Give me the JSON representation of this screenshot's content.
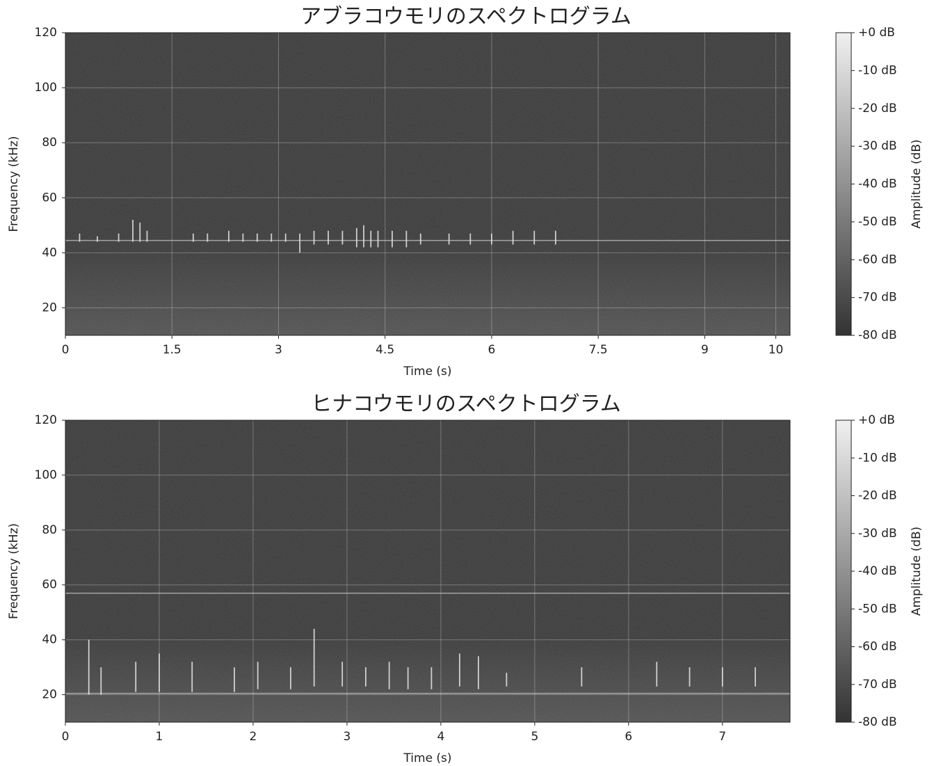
{
  "chart_data": [
    {
      "type": "spectrogram",
      "title": "アブラコウモリのスペクトログラム",
      "x_label": "Time (s)",
      "y_label": "Frequency (kHz)",
      "xlim": [
        0,
        10.2
      ],
      "xticks": [
        0,
        1.5,
        3,
        4.5,
        6,
        7.5,
        9,
        10
      ],
      "ylim": [
        10,
        120
      ],
      "yticks": [
        20,
        40,
        60,
        80,
        100,
        120
      ],
      "grid": true,
      "tone_lines": [
        44.5
      ],
      "calls": {
        "x": [
          0.2,
          0.45,
          0.75,
          0.95,
          1.05,
          1.15,
          1.8,
          2.0,
          2.3,
          2.5,
          2.7,
          2.9,
          3.1,
          3.3,
          3.5,
          3.7,
          3.9,
          4.1,
          4.2,
          4.3,
          4.4,
          4.6,
          4.8,
          5.0,
          5.4,
          5.7,
          6.0,
          6.3,
          6.6,
          6.9
        ],
        "y_low": [
          44,
          44,
          44,
          44,
          44,
          44,
          44,
          44,
          44,
          44,
          44,
          44,
          44,
          40,
          43,
          43,
          43,
          42,
          42,
          42,
          42,
          42,
          42,
          43,
          43,
          43,
          43,
          43,
          43,
          43
        ],
        "y_high": [
          47,
          46,
          47,
          52,
          51,
          48,
          47,
          47,
          48,
          47,
          47,
          47,
          47,
          47,
          48,
          48,
          48,
          49,
          50,
          48,
          48,
          48,
          48,
          47,
          47,
          47,
          47,
          48,
          48,
          48
        ]
      },
      "colorbar": {
        "label": "Amplitude (dB)",
        "lim": [
          -80,
          0
        ],
        "colors": [
          "#333333",
          "#f0f0f0"
        ],
        "ticks": [
          {
            "value": 0,
            "label": "+0 dB"
          },
          {
            "value": -10,
            "label": "-10 dB"
          },
          {
            "value": -20,
            "label": "-20 dB"
          },
          {
            "value": -30,
            "label": "-30 dB"
          },
          {
            "value": -40,
            "label": "-40 dB"
          },
          {
            "value": -50,
            "label": "-50 dB"
          },
          {
            "value": -60,
            "label": "-60 dB"
          },
          {
            "value": -70,
            "label": "-70 dB"
          },
          {
            "value": -80,
            "label": "-80 dB"
          }
        ]
      }
    },
    {
      "type": "spectrogram",
      "title": "ヒナコウモリのスペクトログラム",
      "x_label": "Time (s)",
      "y_label": "Frequency (kHz)",
      "xlim": [
        0,
        7.72
      ],
      "xticks": [
        0,
        1,
        2,
        3,
        4,
        5,
        6,
        7
      ],
      "ylim": [
        10,
        120
      ],
      "yticks": [
        20,
        40,
        60,
        80,
        100,
        120
      ],
      "grid": true,
      "tone_lines": [
        20.5,
        57
      ],
      "calls": {
        "x": [
          0.25,
          0.38,
          0.75,
          1.0,
          1.35,
          1.8,
          2.05,
          2.4,
          2.65,
          2.95,
          3.2,
          3.45,
          3.65,
          3.9,
          4.2,
          4.4,
          4.7,
          5.5,
          6.3,
          6.65,
          7.0,
          7.35
        ],
        "y_low": [
          20,
          20,
          21,
          21,
          21,
          21,
          22,
          22,
          23,
          23,
          23,
          22,
          22,
          22,
          23,
          22,
          23,
          23,
          23,
          23,
          23,
          23
        ],
        "y_high": [
          40,
          30,
          32,
          35,
          32,
          30,
          32,
          30,
          44,
          32,
          30,
          32,
          30,
          30,
          35,
          34,
          28,
          30,
          32,
          30,
          30,
          30
        ]
      },
      "colorbar": {
        "label": "Amplitude (dB)",
        "lim": [
          -80,
          0
        ],
        "colors": [
          "#333333",
          "#f0f0f0"
        ],
        "ticks": [
          {
            "value": 0,
            "label": "+0 dB"
          },
          {
            "value": -10,
            "label": "-10 dB"
          },
          {
            "value": -20,
            "label": "-20 dB"
          },
          {
            "value": -30,
            "label": "-30 dB"
          },
          {
            "value": -40,
            "label": "-40 dB"
          },
          {
            "value": -50,
            "label": "-50 dB"
          },
          {
            "value": -60,
            "label": "-60 dB"
          },
          {
            "value": -70,
            "label": "-70 dB"
          },
          {
            "value": -80,
            "label": "-80 dB"
          }
        ]
      }
    }
  ]
}
